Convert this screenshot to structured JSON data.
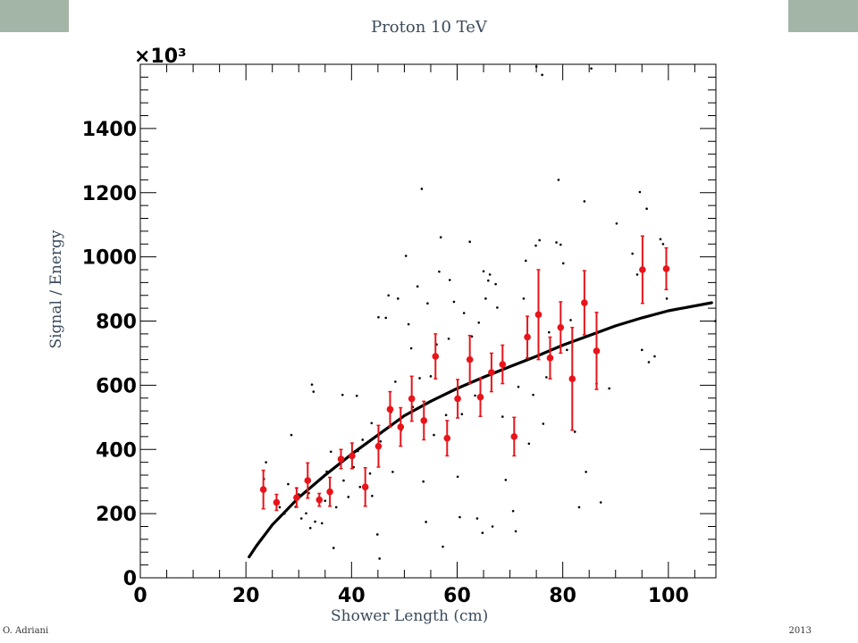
{
  "header": {
    "title": "Proton 10 TeV",
    "corner_color": "#a3b5a6"
  },
  "footer": {
    "left": "O. Adriani",
    "right": "2013"
  },
  "chart_data": {
    "type": "scatter",
    "title": "Proton 10 TeV",
    "xlabel": "Shower Length (cm)",
    "ylabel": "Signal / Energy",
    "y_multiplier": "×10³",
    "xlim": [
      0,
      109
    ],
    "ylim": [
      0,
      1600
    ],
    "x_ticks": [
      0,
      20,
      40,
      60,
      80,
      100
    ],
    "y_ticks": [
      0,
      200,
      400,
      600,
      800,
      1000,
      1200,
      1400
    ],
    "x_tick_labels": [
      "0",
      "20",
      "40",
      "60",
      "80",
      "100"
    ],
    "y_tick_labels": [
      "0",
      "200",
      "400",
      "600",
      "800",
      "1000",
      "1200",
      "1400"
    ],
    "grid": false,
    "series": [
      {
        "kind": "points",
        "color": "#000000",
        "points": [
          [
            23.4,
            308
          ],
          [
            23.8,
            360
          ],
          [
            26.4,
            220
          ],
          [
            27.3,
            200
          ],
          [
            28.0,
            292
          ],
          [
            28.6,
            445
          ],
          [
            29.4,
            221
          ],
          [
            29.6,
            279
          ],
          [
            30.0,
            260
          ],
          [
            30.5,
            185
          ],
          [
            31.4,
            201
          ],
          [
            31.9,
            264
          ],
          [
            32.2,
            155
          ],
          [
            32.5,
            602
          ],
          [
            32.8,
            580
          ],
          [
            33.1,
            175
          ],
          [
            34.4,
            170
          ],
          [
            35.0,
            240
          ],
          [
            35.3,
            331
          ],
          [
            36.1,
            393
          ],
          [
            36.6,
            93
          ],
          [
            37.1,
            220
          ],
          [
            38.3,
            570
          ],
          [
            38.5,
            303
          ],
          [
            39.4,
            252
          ],
          [
            40.4,
            345
          ],
          [
            41.0,
            567
          ],
          [
            41.2,
            395
          ],
          [
            41.6,
            283
          ],
          [
            42.1,
            430
          ],
          [
            43.5,
            325
          ],
          [
            43.8,
            482
          ],
          [
            43.9,
            255
          ],
          [
            44.9,
            135
          ],
          [
            45.1,
            812
          ],
          [
            45.3,
            60
          ],
          [
            45.5,
            425
          ],
          [
            46.0,
            458
          ],
          [
            46.5,
            810
          ],
          [
            47.0,
            880
          ],
          [
            47.5,
            517
          ],
          [
            47.8,
            330
          ],
          [
            48.3,
            611
          ],
          [
            48.8,
            870
          ],
          [
            49.4,
            460
          ],
          [
            50.3,
            1003
          ],
          [
            50.8,
            790
          ],
          [
            51.3,
            715
          ],
          [
            51.6,
            532
          ],
          [
            52.5,
            908
          ],
          [
            52.9,
            622
          ],
          [
            53.3,
            1212
          ],
          [
            53.6,
            300
          ],
          [
            54.1,
            174
          ],
          [
            54.4,
            855
          ],
          [
            55.0,
            628
          ],
          [
            55.6,
            445
          ],
          [
            56.1,
            727
          ],
          [
            56.6,
            954
          ],
          [
            56.9,
            1061
          ],
          [
            57.3,
            97
          ],
          [
            57.9,
            507
          ],
          [
            58.4,
            745
          ],
          [
            58.6,
            928
          ],
          [
            59.4,
            860
          ],
          [
            60.1,
            315
          ],
          [
            60.5,
            189
          ],
          [
            60.9,
            510
          ],
          [
            61.3,
            825
          ],
          [
            62.4,
            1047
          ],
          [
            62.8,
            752
          ],
          [
            63.4,
            568
          ],
          [
            63.8,
            185
          ],
          [
            64.1,
            795
          ],
          [
            64.8,
            140
          ],
          [
            65.0,
            955
          ],
          [
            65.4,
            870
          ],
          [
            65.9,
            926
          ],
          [
            66.2,
            945
          ],
          [
            66.7,
            160
          ],
          [
            67.3,
            915
          ],
          [
            67.6,
            842
          ],
          [
            68.6,
            502
          ],
          [
            69.2,
            305
          ],
          [
            70.6,
            208
          ],
          [
            71.1,
            145
          ],
          [
            71.6,
            595
          ],
          [
            72.6,
            870
          ],
          [
            73.0,
            988
          ],
          [
            73.6,
            418
          ],
          [
            74.4,
            570
          ],
          [
            74.9,
            1035
          ],
          [
            75.0,
            1593
          ],
          [
            75.6,
            1052
          ],
          [
            76.1,
            1567
          ],
          [
            76.3,
            480
          ],
          [
            76.9,
            625
          ],
          [
            77.4,
            765
          ],
          [
            78.8,
            1045
          ],
          [
            79.2,
            1240
          ],
          [
            79.6,
            1038
          ],
          [
            80.1,
            980
          ],
          [
            80.8,
            710
          ],
          [
            81.5,
            803
          ],
          [
            82.3,
            455
          ],
          [
            83.1,
            220
          ],
          [
            84.1,
            1173
          ],
          [
            84.4,
            330
          ],
          [
            85.4,
            1587
          ],
          [
            86.4,
            605
          ],
          [
            87.2,
            235
          ],
          [
            88.8,
            590
          ],
          [
            90.2,
            1104
          ],
          [
            93.2,
            1010
          ],
          [
            94.1,
            945
          ],
          [
            94.6,
            1202
          ],
          [
            95.0,
            710
          ],
          [
            95.9,
            1150
          ],
          [
            96.3,
            672
          ],
          [
            97.4,
            690
          ],
          [
            98.5,
            1055
          ],
          [
            99.0,
            1040
          ],
          [
            99.7,
            870
          ],
          [
            108.9,
            800
          ]
        ]
      },
      {
        "kind": "profile",
        "color": "#e8141a",
        "points": [
          {
            "x": 23.3,
            "y": 275,
            "err": 60
          },
          {
            "x": 25.8,
            "y": 235,
            "err": 25
          },
          {
            "x": 29.6,
            "y": 250,
            "err": 30
          },
          {
            "x": 31.7,
            "y": 303,
            "err": 55
          },
          {
            "x": 33.9,
            "y": 243,
            "err": 20
          },
          {
            "x": 35.9,
            "y": 268,
            "err": 45
          },
          {
            "x": 38.0,
            "y": 370,
            "err": 30
          },
          {
            "x": 40.1,
            "y": 380,
            "err": 40
          },
          {
            "x": 42.6,
            "y": 283,
            "err": 60
          },
          {
            "x": 45.1,
            "y": 410,
            "err": 65
          },
          {
            "x": 47.3,
            "y": 525,
            "err": 55
          },
          {
            "x": 49.3,
            "y": 470,
            "err": 60
          },
          {
            "x": 51.4,
            "y": 558,
            "err": 70
          },
          {
            "x": 53.7,
            "y": 490,
            "err": 60
          },
          {
            "x": 55.9,
            "y": 690,
            "err": 70
          },
          {
            "x": 58.1,
            "y": 435,
            "err": 55
          },
          {
            "x": 60.1,
            "y": 558,
            "err": 60
          },
          {
            "x": 62.4,
            "y": 680,
            "err": 75
          },
          {
            "x": 64.4,
            "y": 563,
            "err": 60
          },
          {
            "x": 66.5,
            "y": 640,
            "err": 60
          },
          {
            "x": 68.6,
            "y": 665,
            "err": 60
          },
          {
            "x": 70.8,
            "y": 440,
            "err": 60
          },
          {
            "x": 73.3,
            "y": 750,
            "err": 65
          },
          {
            "x": 75.4,
            "y": 820,
            "err": 140
          },
          {
            "x": 77.6,
            "y": 685,
            "err": 65
          },
          {
            "x": 79.6,
            "y": 780,
            "err": 80
          },
          {
            "x": 81.8,
            "y": 620,
            "err": 160
          },
          {
            "x": 84.1,
            "y": 857,
            "err": 100
          },
          {
            "x": 86.4,
            "y": 707,
            "err": 120
          },
          {
            "x": 95.1,
            "y": 960,
            "err": 105
          },
          {
            "x": 99.6,
            "y": 963,
            "err": 65
          }
        ]
      },
      {
        "kind": "fit",
        "color": "#000000",
        "points": [
          [
            20.6,
            65
          ],
          [
            22,
            100
          ],
          [
            25,
            165
          ],
          [
            30,
            250
          ],
          [
            35,
            320
          ],
          [
            40,
            385
          ],
          [
            45,
            445
          ],
          [
            50,
            505
          ],
          [
            55,
            550
          ],
          [
            60,
            590
          ],
          [
            65,
            625
          ],
          [
            70,
            658
          ],
          [
            75,
            690
          ],
          [
            80,
            725
          ],
          [
            85,
            755
          ],
          [
            90,
            785
          ],
          [
            95,
            810
          ],
          [
            100,
            832
          ],
          [
            108.2,
            857
          ]
        ]
      }
    ]
  }
}
